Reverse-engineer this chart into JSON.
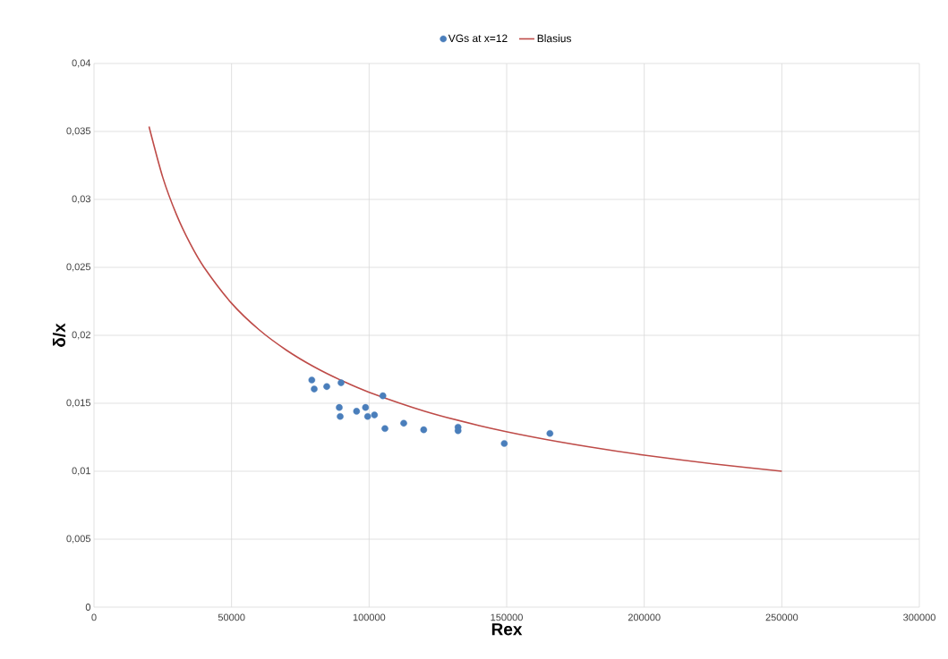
{
  "chart_data": {
    "type": "scatter",
    "xlabel": "**Rex**",
    "ylabel": "**δ/x**",
    "xlim": [
      0,
      300000
    ],
    "xticks": [
      0,
      50000,
      100000,
      150000,
      200000,
      250000,
      300000
    ],
    "ylim": [
      0,
      0.04
    ],
    "yticks": [
      {
        "value": 0,
        "label": "0"
      },
      {
        "value": 0.005,
        "label": "0,005"
      },
      {
        "value": 0.01,
        "label": "0,01"
      },
      {
        "value": 0.015,
        "label": "0,015"
      },
      {
        "value": 0.02,
        "label": "0,02"
      },
      {
        "value": 0.025,
        "label": "0,025"
      },
      {
        "value": 0.03,
        "label": "0,03"
      },
      {
        "value": 0.035,
        "label": "0,035"
      },
      {
        "value": 0.04,
        "label": "0,04"
      }
    ],
    "grid": true,
    "legend": "top",
    "series": [
      {
        "name": "VGs at x=12",
        "marker": "circle",
        "color": "#4a7ebb",
        "x": [
          79170,
          80040,
          84600,
          89800,
          89150,
          89480,
          95440,
          98690,
          99460,
          101940,
          105000,
          105750,
          112580,
          119840,
          132330,
          132330,
          149130,
          165720
        ],
        "values": [
          0.01671,
          0.01605,
          0.01623,
          0.01651,
          0.01469,
          0.01403,
          0.01441,
          0.01469,
          0.01403,
          0.01414,
          0.01555,
          0.01314,
          0.01353,
          0.01305,
          0.01324,
          0.01298,
          0.01204,
          0.01278
        ]
      },
      {
        "name": "Blasius",
        "type": "line",
        "marker": "none",
        "color": "#be4b48",
        "x": [
          20000,
          25000,
          30000,
          35000,
          40000,
          50000,
          60000,
          70000,
          80000,
          90000,
          100000,
          120000,
          140000,
          160000,
          180000,
          200000,
          225000,
          250000
        ],
        "values": [
          0.03536,
          0.03162,
          0.02887,
          0.02673,
          0.025,
          0.02236,
          0.02041,
          0.0189,
          0.01768,
          0.01667,
          0.01581,
          0.01443,
          0.01336,
          0.0125,
          0.01179,
          0.01118,
          0.01054,
          0.01
        ]
      }
    ]
  }
}
